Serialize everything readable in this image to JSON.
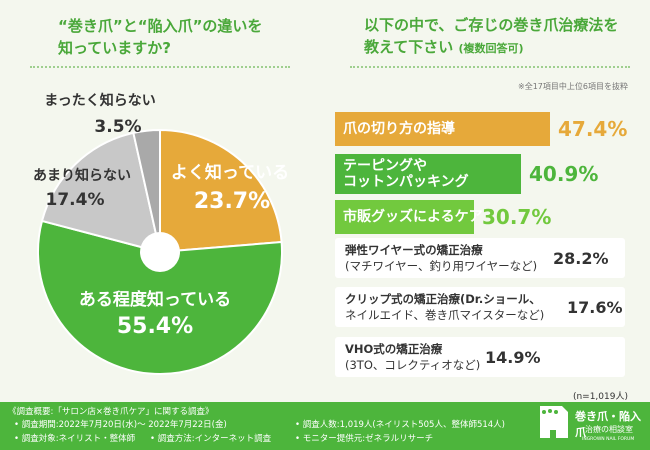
{
  "left_question": {
    "line1": "“巻き爪”と“陥入爪”の違いを",
    "line2": "知っていますか?"
  },
  "right_question": {
    "line1": "以下の中で、ご存じの巻き爪治療法を",
    "line2": "教えて下さい",
    "line2_small": "(複数回答可)"
  },
  "right_note": "※全17項目中上位6項目を抜粋",
  "sample_size": "(n=1,019人)",
  "colors": {
    "orange": "#e6a93a",
    "green": "#4db53c",
    "lightgreen": "#72c93e",
    "gray": "#c8c8c8",
    "darkgray": "#a9a9a9"
  },
  "chart_data": [
    {
      "type": "pie",
      "slices": [
        {
          "label": "よく知っている",
          "pct_text": "23.7%",
          "value": 23.7,
          "color": "#e6a93a"
        },
        {
          "label": "ある程度知っている",
          "pct_text": "55.4%",
          "value": 55.4,
          "color": "#4db53c"
        },
        {
          "label": "あまり知らない",
          "pct_text": "17.4%",
          "value": 17.4,
          "color": "#c8c8c8"
        },
        {
          "label": "まったく知らない",
          "pct_text": "3.5%",
          "value": 3.5,
          "color": "#a9a9a9"
        }
      ]
    },
    {
      "type": "bar",
      "items": [
        {
          "label1": "爪の切り方の指導",
          "label2": "",
          "pct_text": "47.4%",
          "value": 47.4
        },
        {
          "label1": "テーピングや",
          "label2": "コットンパッキング",
          "pct_text": "40.9%",
          "value": 40.9
        },
        {
          "label1": "市販グッズによるケア",
          "label2": "",
          "pct_text": "30.7%",
          "value": 30.7
        },
        {
          "label1": "弾性ワイヤー式の矯正治療",
          "label2": "(マチワイヤー、釣り用ワイヤーなど)",
          "pct_text": "28.2%",
          "value": 28.2
        },
        {
          "label1": "クリップ式の矯正治療(Dr.ショール、",
          "label2": "ネイルエイド、巻き爪マイスターなど)",
          "pct_text": "17.6%",
          "value": 17.6
        },
        {
          "label1": "VHO式の矯正治療",
          "label2": "(3TO、コレクティオなど)",
          "pct_text": "14.9%",
          "value": 14.9
        }
      ]
    }
  ],
  "footer": {
    "title": "《調査概要:「サロン店×巻き爪ケア」に関する調査》",
    "period": "• 調査期間:2022年7月20日(水)〜 2022年7月22日(金)",
    "target": "• 調査対象:ネイリスト・整体師",
    "method": "• 調査方法:インターネット調査",
    "count": "• 調査人数:1,019人(ネイリスト505人、整体師514人)",
    "provider": "• モニター提供元:ゼネラルリサーチ"
  },
  "logo": {
    "line1": "巻き爪・陥入爪",
    "line2": "治療の相談室",
    "line3": "INGROWN NAIL FORUM"
  }
}
